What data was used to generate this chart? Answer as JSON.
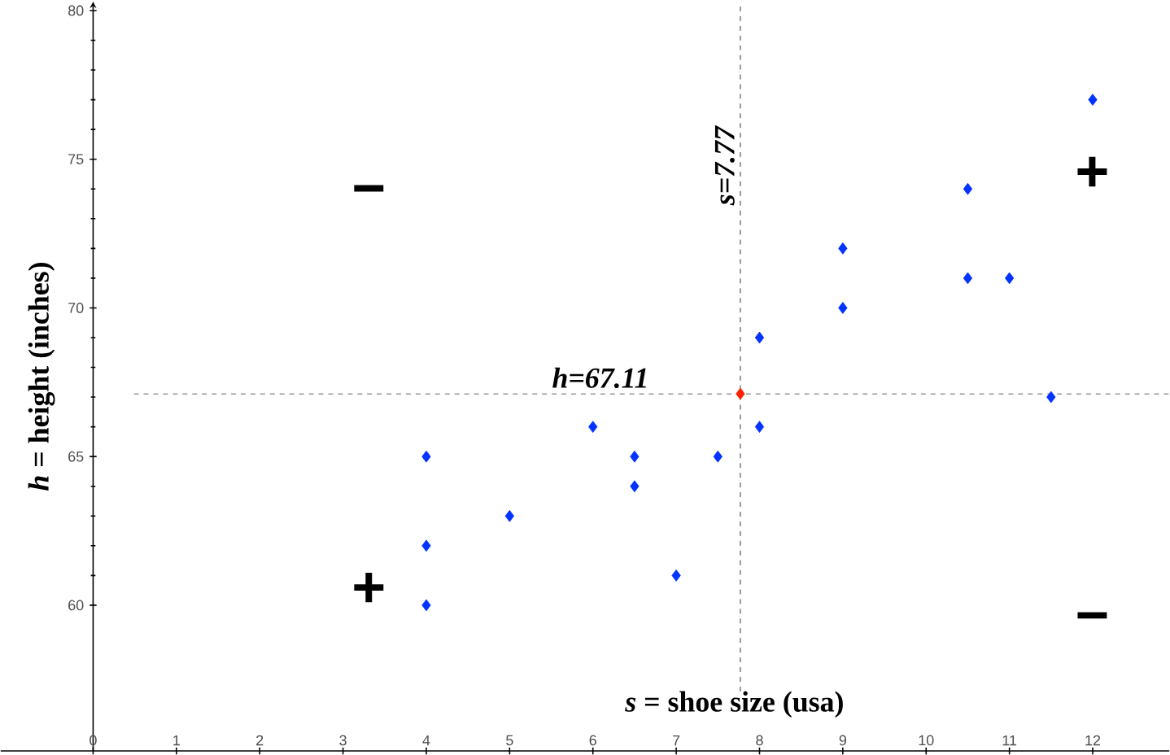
{
  "chart_data": {
    "type": "scatter",
    "xlabel": "*s* = shoe size (usa)",
    "ylabel": "*h* = height (inches)",
    "xlim": [
      -1.11,
      12.92
    ],
    "ylim": [
      55.1,
      80.3
    ],
    "xticks": [
      0,
      1,
      2,
      3,
      4,
      5,
      6,
      7,
      8,
      9,
      10,
      11,
      12
    ],
    "yticks": [
      60,
      65,
      70,
      75,
      80
    ],
    "marker": "diamond",
    "series": [
      {
        "color": "#0033ff",
        "x": [
          4,
          4,
          4,
          5,
          6,
          6.5,
          6.5,
          7,
          7.5,
          8,
          8,
          9,
          9,
          10.5,
          10.5,
          11,
          11.5,
          12
        ],
        "values": [
          65,
          62,
          60,
          63,
          66,
          65,
          64,
          61,
          65,
          69,
          66,
          72,
          70,
          74,
          71,
          71,
          67,
          77
        ]
      },
      {
        "color": "#ff2200",
        "x": [
          7.77
        ],
        "values": [
          67.11
        ]
      }
    ],
    "ref_lines": [
      {
        "axis": "x",
        "value": 7.77,
        "label": "s=7.77",
        "line_style": "dashed"
      },
      {
        "axis": "y",
        "value": 67.11,
        "label": "h=67.11",
        "line_style": "dashed"
      }
    ],
    "annotations": [
      "−",
      "+",
      "+",
      "−"
    ]
  }
}
